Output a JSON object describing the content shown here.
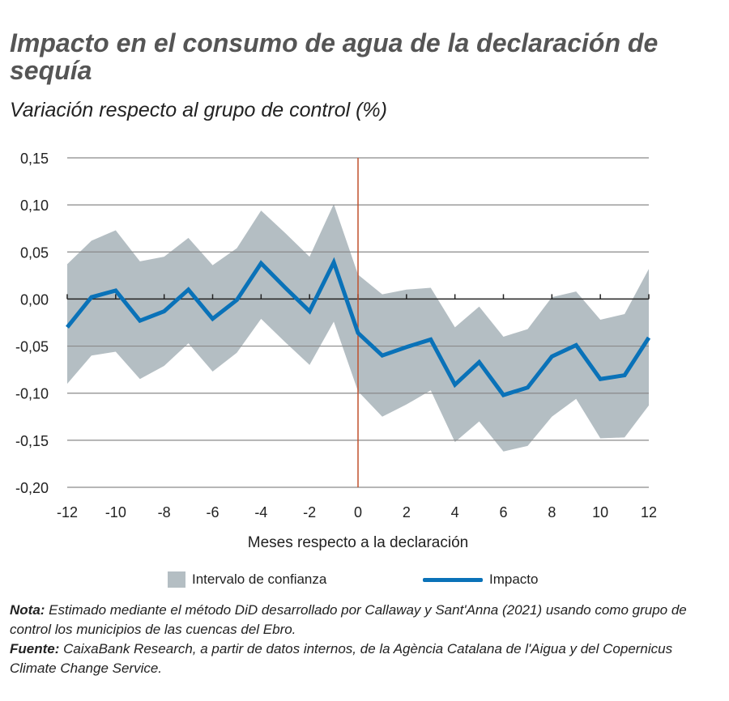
{
  "title": "Impacto en el consumo de agua de la declaración de sequía",
  "subtitle": "Variación respecto al grupo de control (%)",
  "chart_data": {
    "type": "line",
    "xlabel": "Meses respecto a la declaración",
    "ylabel": "",
    "xlim": [
      -12,
      12
    ],
    "ylim": [
      -0.2,
      0.15
    ],
    "x_ticks": [
      "-12",
      "-10",
      "-8",
      "-6",
      "-4",
      "-2",
      "0",
      "2",
      "4",
      "6",
      "8",
      "10",
      "12"
    ],
    "y_ticks": [
      "0,15",
      "0,10",
      "0,05",
      "0,00",
      "-0,05",
      "-0,10",
      "-0,15",
      "-0,20"
    ],
    "grid": true,
    "vertical_marker_x": 0,
    "legend_placement": "bottom",
    "x": [
      -12,
      -11,
      -10,
      -9,
      -8,
      -7,
      -6,
      -5,
      -4,
      -3,
      -2,
      -1,
      0,
      1,
      2,
      3,
      4,
      5,
      6,
      7,
      8,
      9,
      10,
      11,
      12
    ],
    "series": [
      {
        "name": "Impacto",
        "color": "#0a72b8",
        "values": [
          -0.03,
          0.002,
          0.009,
          -0.023,
          -0.013,
          0.01,
          -0.021,
          -0.001,
          0.038,
          0.012,
          -0.013,
          0.039,
          -0.036,
          -0.06,
          -0.051,
          -0.043,
          -0.091,
          -0.067,
          -0.102,
          -0.094,
          -0.061,
          -0.049,
          -0.085,
          -0.081,
          -0.041
        ]
      }
    ],
    "band": {
      "name": "Intervalo de confianza",
      "color": "#b4bec3",
      "upper": [
        0.037,
        0.062,
        0.073,
        0.04,
        0.045,
        0.065,
        0.036,
        0.054,
        0.094,
        0.07,
        0.045,
        0.101,
        0.026,
        0.005,
        0.01,
        0.012,
        -0.03,
        -0.008,
        -0.04,
        -0.032,
        0.002,
        0.008,
        -0.022,
        -0.016,
        0.032
      ],
      "lower": [
        -0.09,
        -0.06,
        -0.056,
        -0.085,
        -0.071,
        -0.047,
        -0.077,
        -0.057,
        -0.021,
        -0.046,
        -0.07,
        -0.024,
        -0.098,
        -0.125,
        -0.112,
        -0.097,
        -0.152,
        -0.13,
        -0.162,
        -0.156,
        -0.125,
        -0.106,
        -0.148,
        -0.147,
        -0.113
      ]
    },
    "marker_color": "#c0502d"
  },
  "legend": {
    "band_label": "Intervalo de confianza",
    "line_label": "Impacto"
  },
  "notes": {
    "nota_label": "Nota:",
    "nota_text": " Estimado mediante el método DiD desarrollado por Callaway y Sant'Anna (2021) usando como grupo de control los municipios de las cuencas del Ebro.",
    "fuente_label": "Fuente:",
    "fuente_text": " CaixaBank Research, a partir de datos internos, de la Agència Catalana de l'Aigua y del Copernicus Climate Change Service."
  }
}
